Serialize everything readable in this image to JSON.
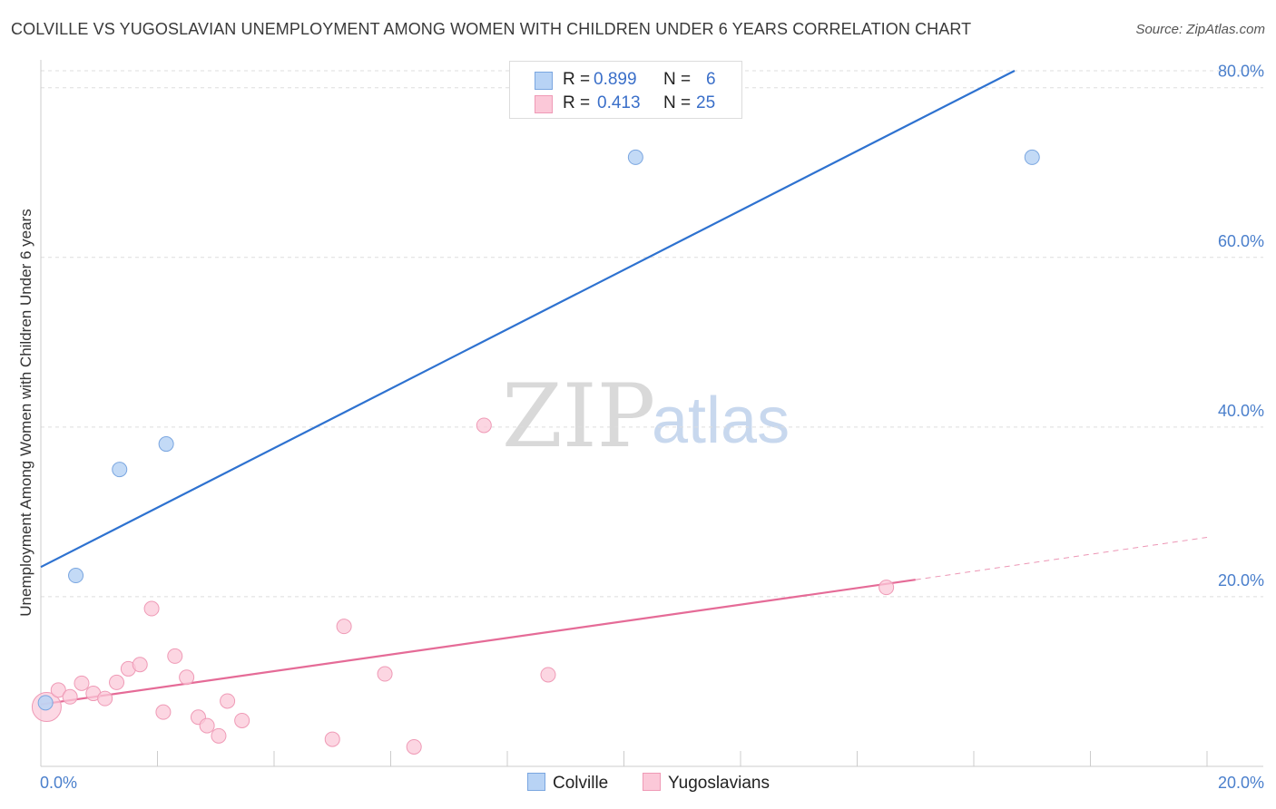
{
  "title": "COLVILLE VS YUGOSLAVIAN UNEMPLOYMENT AMONG WOMEN WITH CHILDREN UNDER 6 YEARS CORRELATION CHART",
  "source": "Source: ZipAtlas.com",
  "watermark": {
    "zip": "ZIP",
    "atlas": "atlas"
  },
  "legend_top": {
    "rows": [
      {
        "r_label": "R =",
        "r_value": "0.899",
        "n_label": "N =",
        "n_value": "6"
      },
      {
        "r_label": "R =",
        "r_value": "0.413",
        "n_label": "N =",
        "n_value": "25"
      }
    ]
  },
  "legend_bottom": {
    "series1": "Colville",
    "series2": "Yugoslavians"
  },
  "colors": {
    "colville_fill": "#b8d3f5",
    "colville_stroke": "#7aa6e0",
    "colville_line": "#2e72d0",
    "yugo_fill": "#fbc8d8",
    "yugo_stroke": "#ef9ab6",
    "yugo_line": "#e56b97",
    "tick": "#4a7fcc",
    "grid": "#dddddd"
  },
  "chart_data": {
    "type": "scatter",
    "title": "COLVILLE VS YUGOSLAVIAN UNEMPLOYMENT AMONG WOMEN WITH CHILDREN UNDER 6 YEARS CORRELATION CHART",
    "xlabel": "",
    "ylabel": "Unemployment Among Women with Children Under 6 years",
    "xlim": [
      0,
      20
    ],
    "ylim": [
      0,
      82
    ],
    "x_tick_labels": [
      "0.0%",
      "20.0%"
    ],
    "y_ticks": [
      20,
      40,
      60,
      80
    ],
    "y_tick_labels": [
      "20.0%",
      "40.0%",
      "60.0%",
      "80.0%"
    ],
    "series": [
      {
        "name": "Colville",
        "R": 0.899,
        "N": 6,
        "points": [
          {
            "x": 0.08,
            "y": 7.5
          },
          {
            "x": 0.6,
            "y": 22.5
          },
          {
            "x": 1.35,
            "y": 35.0
          },
          {
            "x": 2.15,
            "y": 38.0
          },
          {
            "x": 10.2,
            "y": 71.8
          },
          {
            "x": 17.0,
            "y": 71.8
          }
        ],
        "trend": {
          "x0": 0,
          "y0": 23.5,
          "x1": 16.7,
          "y1": 82.0
        }
      },
      {
        "name": "Yugoslavians",
        "R": 0.413,
        "N": 25,
        "points": [
          {
            "x": 0.1,
            "y": 7.0,
            "big": true
          },
          {
            "x": 0.3,
            "y": 9.0
          },
          {
            "x": 0.5,
            "y": 8.2
          },
          {
            "x": 0.7,
            "y": 9.8
          },
          {
            "x": 0.9,
            "y": 8.6
          },
          {
            "x": 1.1,
            "y": 8.0
          },
          {
            "x": 1.3,
            "y": 9.9
          },
          {
            "x": 1.5,
            "y": 11.5
          },
          {
            "x": 1.7,
            "y": 12.0
          },
          {
            "x": 1.9,
            "y": 18.6
          },
          {
            "x": 2.1,
            "y": 6.4
          },
          {
            "x": 2.3,
            "y": 13.0
          },
          {
            "x": 2.5,
            "y": 10.5
          },
          {
            "x": 2.7,
            "y": 5.8
          },
          {
            "x": 2.85,
            "y": 4.8
          },
          {
            "x": 3.05,
            "y": 3.6
          },
          {
            "x": 3.2,
            "y": 7.7
          },
          {
            "x": 3.45,
            "y": 5.4
          },
          {
            "x": 5.0,
            "y": 3.2
          },
          {
            "x": 5.2,
            "y": 16.5
          },
          {
            "x": 5.9,
            "y": 10.9
          },
          {
            "x": 6.4,
            "y": 2.3
          },
          {
            "x": 7.6,
            "y": 40.2
          },
          {
            "x": 8.7,
            "y": 10.8
          },
          {
            "x": 14.5,
            "y": 21.1
          }
        ],
        "trend": {
          "x0": 0,
          "y0": 7.3,
          "x1": 15.0,
          "y1": 22.0
        },
        "trend_dashed": {
          "x0": 15.0,
          "y0": 22.0,
          "x1": 20.0,
          "y1": 27.0
        }
      }
    ]
  }
}
